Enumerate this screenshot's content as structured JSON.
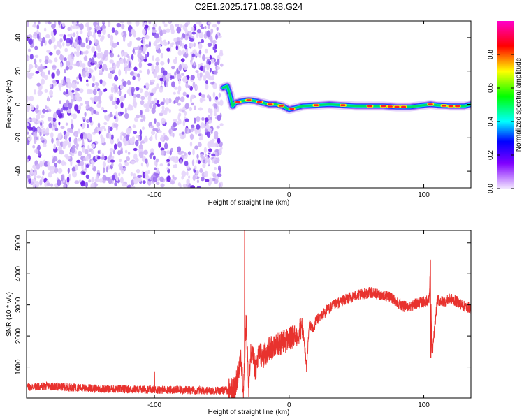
{
  "page_title": "C2E1.2025.171.08.38.G24",
  "chart_data": [
    {
      "type": "heatmap",
      "xlabel": "Height of straight line (km)",
      "ylabel": "Frequency (Hz)",
      "xlim": [
        -195,
        135
      ],
      "ylim": [
        -50,
        50
      ],
      "x_ticks": [
        {
          "value": -100,
          "label": "-100"
        },
        {
          "value": 0,
          "label": "0"
        },
        {
          "value": 100,
          "label": "100"
        }
      ],
      "y_ticks": [
        {
          "value": 40,
          "label": "40"
        },
        {
          "value": 20,
          "label": "20"
        },
        {
          "value": 0,
          "label": "0"
        },
        {
          "value": -20,
          "label": "-20"
        },
        {
          "value": -40,
          "label": "-40"
        }
      ],
      "noise_region_x": [
        -195,
        -50
      ],
      "ridge": [
        {
          "x": -49,
          "y": 10
        },
        {
          "x": -46,
          "y": 11
        },
        {
          "x": -44,
          "y": 6
        },
        {
          "x": -42,
          "y": -1
        },
        {
          "x": -40,
          "y": 1
        },
        {
          "x": -35,
          "y": 2
        },
        {
          "x": -30,
          "y": 2.5
        },
        {
          "x": -25,
          "y": 2
        },
        {
          "x": -20,
          "y": 1
        },
        {
          "x": -15,
          "y": 0
        },
        {
          "x": -10,
          "y": 0
        },
        {
          "x": -5,
          "y": -1
        },
        {
          "x": 0,
          "y": -3
        },
        {
          "x": 5,
          "y": -2
        },
        {
          "x": 10,
          "y": -1
        },
        {
          "x": 20,
          "y": -0.5
        },
        {
          "x": 30,
          "y": 0
        },
        {
          "x": 40,
          "y": -0.5
        },
        {
          "x": 50,
          "y": -1
        },
        {
          "x": 60,
          "y": -1
        },
        {
          "x": 70,
          "y": -1
        },
        {
          "x": 80,
          "y": -1.5
        },
        {
          "x": 90,
          "y": -1.5
        },
        {
          "x": 95,
          "y": -1
        },
        {
          "x": 100,
          "y": -0.5
        },
        {
          "x": 105,
          "y": 0
        },
        {
          "x": 110,
          "y": -0.5
        },
        {
          "x": 120,
          "y": -1
        },
        {
          "x": 130,
          "y": -1
        },
        {
          "x": 135,
          "y": 0
        }
      ],
      "colorbar": {
        "label": "Normalized spectral amplitude",
        "range": [
          0,
          1
        ],
        "ticks": [
          "0.0",
          "0.2",
          "0.4",
          "0.6",
          "0.8"
        ]
      }
    },
    {
      "type": "line",
      "xlabel": "Height of straight line (km)",
      "ylabel": "SNR (10 * v/v)",
      "xlim": [
        -195,
        135
      ],
      "ylim": [
        0,
        5400
      ],
      "color": "#e8322e",
      "x_ticks": [
        {
          "value": -100,
          "label": "-100"
        },
        {
          "value": 0,
          "label": "0"
        },
        {
          "value": 100,
          "label": "100"
        }
      ],
      "y_ticks": [
        {
          "value": 5000,
          "label": "5000"
        },
        {
          "value": 4000,
          "label": "4000"
        },
        {
          "value": 3000,
          "label": "3000"
        },
        {
          "value": 2000,
          "label": "2000"
        },
        {
          "value": 1000,
          "label": "1000"
        }
      ],
      "series": [
        {
          "x": [
            -195,
            -180,
            -160,
            -140,
            -120,
            -100,
            -80,
            -60,
            -45,
            -40,
            -38,
            -36,
            -34,
            -32,
            -30,
            -28,
            -25,
            -22,
            -20,
            -15,
            -10,
            -5,
            0,
            5,
            10,
            13,
            15,
            18,
            20,
            30,
            40,
            50,
            55,
            60,
            65,
            70,
            75,
            80,
            85,
            90,
            95,
            100,
            104,
            105,
            106,
            110,
            115,
            120,
            125,
            130,
            135
          ],
          "y": [
            350,
            380,
            340,
            300,
            280,
            270,
            260,
            240,
            250,
            300,
            800,
            1400,
            200,
            2500,
            400,
            1700,
            900,
            1500,
            1300,
            1600,
            1700,
            1800,
            1900,
            2000,
            2300,
            1000,
            2400,
            2200,
            2500,
            2900,
            3150,
            3300,
            3350,
            3400,
            3350,
            3300,
            3250,
            3100,
            2950,
            2950,
            3050,
            3100,
            3150,
            4450,
            1300,
            3150,
            3100,
            3200,
            3100,
            2950,
            2900
          ]
        }
      ]
    }
  ]
}
